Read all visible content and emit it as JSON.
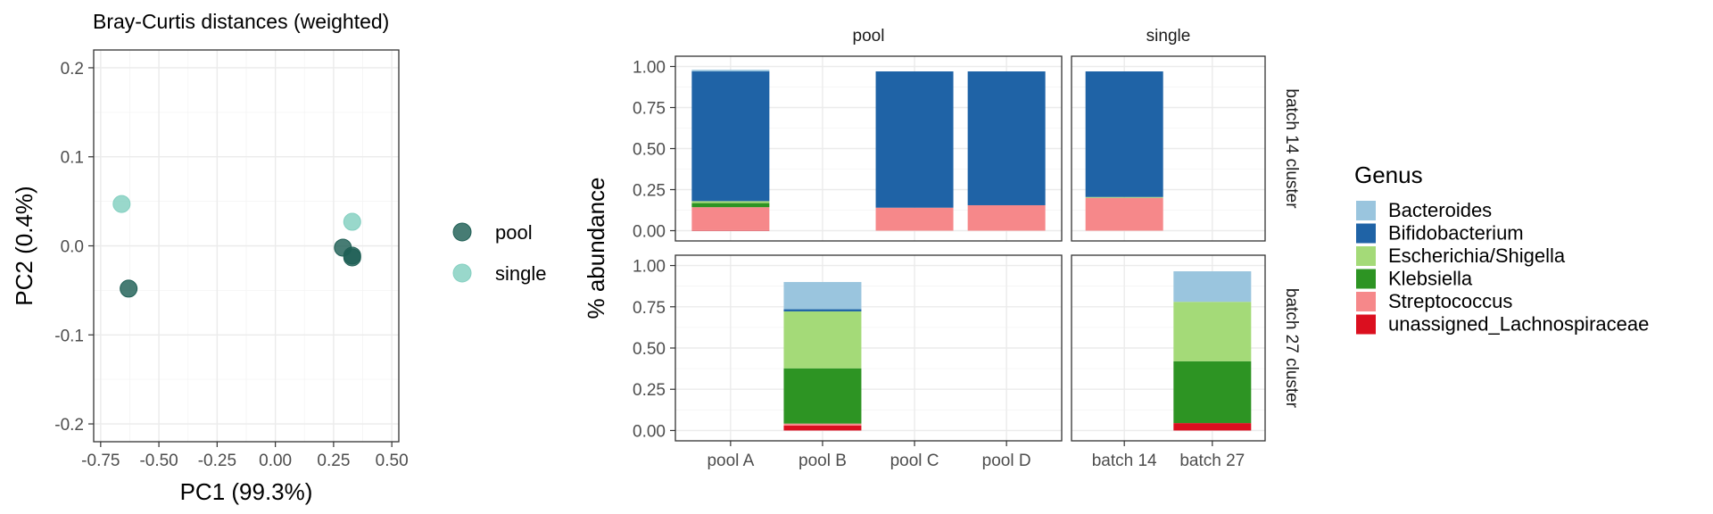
{
  "chart_data": [
    {
      "type": "scatter",
      "title": "Bray-Curtis distances (weighted)",
      "xlabel": "PC1 (99.3%)",
      "ylabel": "PC2 (0.4%)",
      "xlim": [
        -0.78,
        0.53
      ],
      "ylim": [
        -0.22,
        0.22
      ],
      "xticks": [
        -0.75,
        -0.5,
        -0.25,
        0.0,
        0.25,
        0.5
      ],
      "xtick_labels": [
        "-0.75",
        "-0.50",
        "-0.25",
        "0.00",
        "0.25",
        "0.50"
      ],
      "yticks": [
        -0.2,
        -0.1,
        0.0,
        0.1,
        0.2
      ],
      "ytick_labels": [
        "-0.2",
        "-0.1",
        "0.0",
        "0.1",
        "0.2"
      ],
      "legend_placement": "right",
      "series": [
        {
          "name": "pool",
          "color": "#1f5f55",
          "points": [
            [
              -0.63,
              -0.048
            ],
            [
              0.29,
              -0.002
            ],
            [
              0.33,
              -0.011
            ],
            [
              0.33,
              -0.013
            ]
          ]
        },
        {
          "name": "single",
          "color": "#83cfc0",
          "points": [
            [
              -0.66,
              0.047
            ],
            [
              0.33,
              0.027
            ]
          ]
        }
      ]
    },
    {
      "type": "bar",
      "stacked": true,
      "ylabel": "% abundance",
      "ylim": [
        0,
        1.0
      ],
      "yticks": [
        0,
        0.25,
        0.5,
        0.75,
        1.0
      ],
      "ytick_labels": [
        "0.00",
        "0.25",
        "0.50",
        "0.75",
        "1.00"
      ],
      "facet_cols": [
        {
          "label": "pool",
          "categories": [
            "pool A",
            "pool B",
            "pool C",
            "pool D"
          ]
        },
        {
          "label": "single",
          "categories": [
            "batch 14",
            "batch 27"
          ]
        }
      ],
      "facet_rows": [
        "batch 14 cluster",
        "batch 27 cluster"
      ],
      "legend": {
        "title": "Genus",
        "items": [
          {
            "name": "Bacteroides",
            "color": "#9ac5de"
          },
          {
            "name": "Bifidobacterium",
            "color": "#1f63a6"
          },
          {
            "name": "Escherichia/Shigella",
            "color": "#a4da78"
          },
          {
            "name": "Klebsiella",
            "color": "#2d9423"
          },
          {
            "name": "Streptococcus",
            "color": "#f6888a"
          },
          {
            "name": "unassigned_Lachnospiraceae",
            "color": "#db0f1f"
          }
        ]
      },
      "bars": [
        {
          "row": 0,
          "col": 0,
          "category": "pool A",
          "segments": [
            {
              "genus": "unassigned_Lachnospiraceae",
              "value": 0.003
            },
            {
              "genus": "Streptococcus",
              "value": 0.14
            },
            {
              "genus": "Klebsiella",
              "value": 0.025
            },
            {
              "genus": "Escherichia/Shigella",
              "value": 0.012
            },
            {
              "genus": "Bifidobacterium",
              "value": 0.79
            },
            {
              "genus": "Bacteroides",
              "value": 0.01
            }
          ]
        },
        {
          "row": 0,
          "col": 0,
          "category": "pool C",
          "segments": [
            {
              "genus": "Streptococcus",
              "value": 0.14
            },
            {
              "genus": "Bifidobacterium",
              "value": 0.83
            }
          ]
        },
        {
          "row": 0,
          "col": 0,
          "category": "pool D",
          "segments": [
            {
              "genus": "Streptococcus",
              "value": 0.155
            },
            {
              "genus": "Bifidobacterium",
              "value": 0.815
            }
          ]
        },
        {
          "row": 0,
          "col": 1,
          "category": "batch 14",
          "segments": [
            {
              "genus": "Streptococcus",
              "value": 0.2
            },
            {
              "genus": "Escherichia/Shigella",
              "value": 0.005
            },
            {
              "genus": "Bifidobacterium",
              "value": 0.765
            }
          ]
        },
        {
          "row": 1,
          "col": 0,
          "category": "pool B",
          "segments": [
            {
              "genus": "unassigned_Lachnospiraceae",
              "value": 0.03
            },
            {
              "genus": "Streptococcus",
              "value": 0.012
            },
            {
              "genus": "Klebsiella",
              "value": 0.335
            },
            {
              "genus": "Escherichia/Shigella",
              "value": 0.345
            },
            {
              "genus": "Bifidobacterium",
              "value": 0.013
            },
            {
              "genus": "Bacteroides",
              "value": 0.165
            }
          ]
        },
        {
          "row": 1,
          "col": 1,
          "category": "batch 27",
          "segments": [
            {
              "genus": "unassigned_Lachnospiraceae",
              "value": 0.045
            },
            {
              "genus": "Klebsiella",
              "value": 0.375
            },
            {
              "genus": "Escherichia/Shigella",
              "value": 0.36
            },
            {
              "genus": "Bacteroides",
              "value": 0.185
            }
          ]
        }
      ]
    }
  ]
}
